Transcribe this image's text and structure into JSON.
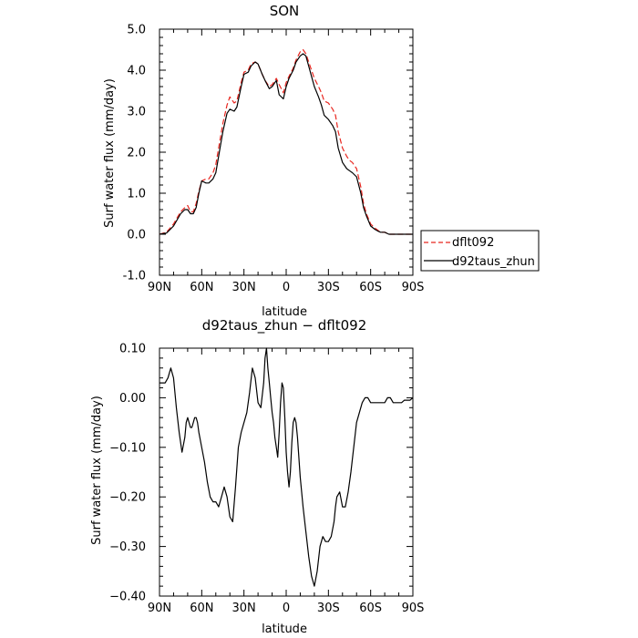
{
  "chart_data": [
    {
      "type": "line",
      "title": "SON",
      "xlabel": "latitude",
      "ylabel": "Surf water flux (mm/day)",
      "xlim": [
        90,
        -90
      ],
      "ylim": [
        -1.0,
        5.0
      ],
      "x_ticks": [
        90,
        60,
        30,
        0,
        -30,
        -60,
        -90
      ],
      "x_tick_labels": [
        "90N",
        "60N",
        "30N",
        "0",
        "30S",
        "60S",
        "90S"
      ],
      "y_ticks": [
        -1.0,
        0.0,
        1.0,
        2.0,
        3.0,
        4.0,
        5.0
      ],
      "y_tick_labels": [
        "-1.0",
        "0.0",
        "1.0",
        "2.0",
        "3.0",
        "4.0",
        "5.0"
      ],
      "legend_position": "right",
      "series": [
        {
          "name": "dflt092",
          "color": "#e8261f",
          "dash": "dashed",
          "x": [
            90,
            85,
            80,
            75,
            72,
            70,
            68,
            66,
            64,
            62,
            60,
            57,
            55,
            52,
            50,
            47,
            45,
            42,
            40,
            37,
            35,
            32,
            30,
            27,
            25,
            22,
            20,
            17,
            15,
            12,
            10,
            7,
            5,
            2,
            0,
            -2,
            -5,
            -7,
            -10,
            -12,
            -14,
            -16,
            -18,
            -20,
            -23,
            -25,
            -27,
            -30,
            -33,
            -35,
            -37,
            -40,
            -43,
            -45,
            -47,
            -50,
            -53,
            -55,
            -57,
            -60,
            -63,
            -65,
            -67,
            -70,
            -73,
            -75,
            -78,
            -80,
            -83,
            -85,
            -88,
            -90
          ],
          "y": [
            0.0,
            0.05,
            0.25,
            0.55,
            0.65,
            0.7,
            0.55,
            0.55,
            0.75,
            1.05,
            1.3,
            1.35,
            1.35,
            1.5,
            1.7,
            2.3,
            2.7,
            3.15,
            3.35,
            3.2,
            3.25,
            3.7,
            3.95,
            4.0,
            4.15,
            4.2,
            4.15,
            3.9,
            3.75,
            3.6,
            3.65,
            3.8,
            3.65,
            3.45,
            3.7,
            3.85,
            4.05,
            4.25,
            4.45,
            4.5,
            4.4,
            4.2,
            4.0,
            3.8,
            3.6,
            3.45,
            3.25,
            3.2,
            3.05,
            2.9,
            2.5,
            2.1,
            1.9,
            1.8,
            1.75,
            1.6,
            1.15,
            0.75,
            0.5,
            0.25,
            0.15,
            0.1,
            0.05,
            0.05,
            0.0,
            0.0,
            0.0,
            0.0,
            0.0,
            0.0,
            0.0,
            0.0
          ]
        },
        {
          "name": "d92taus_zhun",
          "color": "#000000",
          "dash": "solid",
          "x": [
            90,
            85,
            80,
            75,
            72,
            70,
            68,
            66,
            64,
            62,
            60,
            57,
            55,
            52,
            50,
            47,
            45,
            42,
            40,
            37,
            35,
            32,
            30,
            27,
            25,
            22,
            20,
            17,
            15,
            12,
            10,
            7,
            5,
            2,
            0,
            -2,
            -5,
            -7,
            -10,
            -12,
            -14,
            -16,
            -18,
            -20,
            -23,
            -25,
            -27,
            -30,
            -33,
            -35,
            -37,
            -40,
            -43,
            -45,
            -47,
            -50,
            -53,
            -55,
            -57,
            -60,
            -63,
            -65,
            -67,
            -70,
            -73,
            -75,
            -78,
            -80,
            -83,
            -85,
            -88,
            -90
          ],
          "y": [
            0.0,
            0.03,
            0.2,
            0.5,
            0.6,
            0.6,
            0.5,
            0.5,
            0.65,
            1.0,
            1.3,
            1.25,
            1.25,
            1.35,
            1.5,
            2.1,
            2.5,
            2.95,
            3.05,
            3.0,
            3.1,
            3.6,
            3.9,
            3.95,
            4.1,
            4.2,
            4.15,
            3.9,
            3.75,
            3.55,
            3.6,
            3.75,
            3.4,
            3.3,
            3.6,
            3.8,
            4.0,
            4.2,
            4.35,
            4.4,
            4.35,
            4.1,
            3.85,
            3.6,
            3.35,
            3.15,
            2.9,
            2.8,
            2.65,
            2.5,
            2.1,
            1.75,
            1.6,
            1.55,
            1.5,
            1.4,
            1.0,
            0.65,
            0.45,
            0.2,
            0.12,
            0.08,
            0.05,
            0.05,
            0.0,
            0.0,
            0.0,
            0.0,
            0.0,
            0.0,
            0.0,
            0.0
          ]
        }
      ]
    },
    {
      "type": "line",
      "title": "d92taus_zhun − dflt092",
      "xlabel": "latitude",
      "ylabel": "Surf water flux (mm/day)",
      "xlim": [
        90,
        -90
      ],
      "ylim": [
        -0.4,
        0.1
      ],
      "x_ticks": [
        90,
        60,
        30,
        0,
        -30,
        -60,
        -90
      ],
      "x_tick_labels": [
        "90N",
        "60N",
        "30N",
        "0",
        "30S",
        "60S",
        "90S"
      ],
      "y_ticks": [
        -0.4,
        -0.3,
        -0.2,
        -0.1,
        0.0,
        0.1
      ],
      "y_tick_labels": [
        "−0.40",
        "−0.30",
        "−0.20",
        "−0.10",
        "0.00",
        "0.10"
      ],
      "series": [
        {
          "color": "#000000",
          "dash": "solid",
          "x": [
            90,
            88,
            86,
            84,
            82,
            80,
            78,
            76,
            74,
            72,
            71,
            70,
            69,
            68,
            67,
            66,
            65,
            64,
            63,
            62,
            60,
            58,
            56,
            54,
            52,
            50,
            48,
            46,
            44,
            42,
            40,
            38,
            36,
            34,
            32,
            30,
            28,
            26,
            24,
            22,
            20,
            18,
            16,
            15,
            14,
            13,
            12,
            11,
            10,
            9,
            8,
            7,
            6,
            5,
            4,
            3,
            2,
            1,
            0,
            -1,
            -2,
            -3,
            -4,
            -5,
            -6,
            -7,
            -8,
            -9,
            -10,
            -12,
            -14,
            -16,
            -18,
            -20,
            -22,
            -24,
            -26,
            -28,
            -30,
            -32,
            -34,
            -35,
            -36,
            -38,
            -40,
            -42,
            -44,
            -46,
            -48,
            -50,
            -52,
            -54,
            -56,
            -58,
            -60,
            -62,
            -64,
            -66,
            -68,
            -70,
            -72,
            -74,
            -76,
            -78,
            -80,
            -82,
            -84,
            -86,
            -88,
            -90
          ],
          "y": [
            0.03,
            0.03,
            0.03,
            0.04,
            0.06,
            0.04,
            -0.02,
            -0.07,
            -0.11,
            -0.08,
            -0.05,
            -0.04,
            -0.05,
            -0.06,
            -0.06,
            -0.05,
            -0.04,
            -0.04,
            -0.05,
            -0.07,
            -0.1,
            -0.13,
            -0.17,
            -0.2,
            -0.21,
            -0.21,
            -0.22,
            -0.2,
            -0.18,
            -0.2,
            -0.24,
            -0.25,
            -0.18,
            -0.1,
            -0.07,
            -0.05,
            -0.03,
            0.01,
            0.06,
            0.04,
            -0.01,
            -0.02,
            0.03,
            0.08,
            0.1,
            0.06,
            0.03,
            0.0,
            -0.03,
            -0.05,
            -0.08,
            -0.1,
            -0.12,
            -0.07,
            -0.01,
            0.03,
            0.02,
            -0.04,
            -0.11,
            -0.15,
            -0.18,
            -0.15,
            -0.09,
            -0.05,
            -0.04,
            -0.05,
            -0.08,
            -0.12,
            -0.16,
            -0.22,
            -0.27,
            -0.32,
            -0.36,
            -0.38,
            -0.35,
            -0.3,
            -0.28,
            -0.29,
            -0.29,
            -0.28,
            -0.25,
            -0.22,
            -0.2,
            -0.19,
            -0.22,
            -0.22,
            -0.19,
            -0.15,
            -0.1,
            -0.05,
            -0.03,
            -0.01,
            0.0,
            0.0,
            -0.01,
            -0.01,
            -0.01,
            -0.01,
            -0.01,
            -0.01,
            0.0,
            0.0,
            -0.01,
            -0.01,
            -0.01,
            -0.01,
            -0.005,
            -0.005,
            -0.005,
            0.0
          ]
        }
      ]
    }
  ]
}
